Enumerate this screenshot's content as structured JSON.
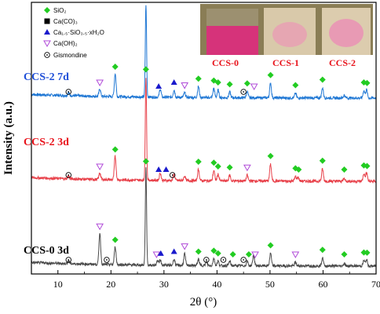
{
  "chart_data": {
    "type": "line",
    "xlabel": "2θ (°)",
    "ylabel": "Intensity (a.u.)",
    "xlim": [
      5,
      70
    ],
    "x_ticks": [
      "10",
      "20",
      "30",
      "40",
      "50",
      "60",
      "70"
    ],
    "x_tick_values": [
      10,
      20,
      30,
      40,
      50,
      60,
      70
    ],
    "legend": [
      {
        "label": "SiO₂",
        "marker": "diamond",
        "color": "#22cc22"
      },
      {
        "label": "Ca(CO)₃",
        "marker": "square",
        "color": "#000000"
      },
      {
        "label": "Ca₁.₅·SiO₃.₅·xH₂O",
        "marker": "triangle",
        "color": "#1a1acc"
      },
      {
        "label": "Ca(OH)₂",
        "marker": "triangle-down-open",
        "color": "#b04ad8"
      },
      {
        "label": "Gismondine",
        "marker": "circle-dot",
        "color": "#000000"
      }
    ],
    "series": [
      {
        "name": "CCS-2 7d",
        "color": "#1f77d4",
        "offset": 2.2,
        "label_color": "#1f4fd8",
        "peaks": [
          [
            12.0,
            0.03
          ],
          [
            17.9,
            0.08
          ],
          [
            20.8,
            0.25
          ],
          [
            26.6,
            1.0
          ],
          [
            29.3,
            0.09
          ],
          [
            31.9,
            0.08
          ],
          [
            33.9,
            0.05
          ],
          [
            36.5,
            0.12
          ],
          [
            39.4,
            0.1
          ],
          [
            40.2,
            0.08
          ],
          [
            42.4,
            0.06
          ],
          [
            45.7,
            0.07
          ],
          [
            50.1,
            0.16
          ],
          [
            54.8,
            0.05
          ],
          [
            59.9,
            0.11
          ],
          [
            64.0,
            0.03
          ],
          [
            67.7,
            0.08
          ],
          [
            68.2,
            0.09
          ]
        ]
      },
      {
        "name": "CCS-2 3d",
        "color": "#e8414a",
        "offset": 1.1,
        "label_color": "#e8141c",
        "peaks": [
          [
            12.0,
            0.03
          ],
          [
            17.9,
            0.07
          ],
          [
            20.8,
            0.25
          ],
          [
            26.6,
            1.1
          ],
          [
            29.3,
            0.08
          ],
          [
            31.9,
            0.07
          ],
          [
            33.9,
            0.05
          ],
          [
            36.5,
            0.12
          ],
          [
            39.4,
            0.11
          ],
          [
            40.2,
            0.07
          ],
          [
            42.4,
            0.06
          ],
          [
            45.7,
            0.06
          ],
          [
            50.1,
            0.18
          ],
          [
            54.8,
            0.05
          ],
          [
            55.3,
            0.04
          ],
          [
            59.9,
            0.13
          ],
          [
            64.0,
            0.03
          ],
          [
            67.7,
            0.08
          ],
          [
            68.2,
            0.09
          ]
        ]
      },
      {
        "name": "CCS-0 3d",
        "color": "#4a4a4a",
        "offset": 0.0,
        "label_color": "#000000",
        "peaks": [
          [
            12.0,
            0.03
          ],
          [
            17.9,
            0.35
          ],
          [
            20.8,
            0.2
          ],
          [
            26.6,
            1.07
          ],
          [
            28.8,
            0.05
          ],
          [
            29.3,
            0.06
          ],
          [
            31.9,
            0.07
          ],
          [
            33.9,
            0.13
          ],
          [
            36.5,
            0.07
          ],
          [
            38.0,
            0.04
          ],
          [
            39.4,
            0.08
          ],
          [
            40.2,
            0.05
          ],
          [
            42.4,
            0.05
          ],
          [
            45.7,
            0.05
          ],
          [
            46.9,
            0.12
          ],
          [
            50.1,
            0.14
          ],
          [
            54.8,
            0.04
          ],
          [
            59.9,
            0.09
          ],
          [
            64.0,
            0.03
          ],
          [
            67.7,
            0.06
          ],
          [
            68.2,
            0.07
          ]
        ]
      }
    ],
    "phase_markers": [
      {
        "series": 0,
        "x": 12.0,
        "type": "circle-dot"
      },
      {
        "series": 0,
        "x": 17.9,
        "type": "triangle-down-open"
      },
      {
        "series": 0,
        "x": 20.8,
        "type": "diamond"
      },
      {
        "series": 0,
        "x": 26.6,
        "type": "diamond"
      },
      {
        "series": 0,
        "x": 29.0,
        "type": "triangle"
      },
      {
        "series": 0,
        "x": 31.9,
        "type": "triangle"
      },
      {
        "series": 0,
        "x": 33.9,
        "type": "triangle-down-open"
      },
      {
        "series": 0,
        "x": 36.5,
        "type": "diamond"
      },
      {
        "series": 0,
        "x": 39.4,
        "type": "diamond"
      },
      {
        "series": 0,
        "x": 40.2,
        "type": "diamond"
      },
      {
        "series": 0,
        "x": 42.4,
        "type": "diamond"
      },
      {
        "series": 0,
        "x": 45.0,
        "type": "circle-dot"
      },
      {
        "series": 0,
        "x": 45.7,
        "type": "diamond"
      },
      {
        "series": 0,
        "x": 47.0,
        "type": "triangle-down-open"
      },
      {
        "series": 0,
        "x": 50.1,
        "type": "diamond"
      },
      {
        "series": 0,
        "x": 54.8,
        "type": "diamond"
      },
      {
        "series": 0,
        "x": 59.9,
        "type": "diamond"
      },
      {
        "series": 0,
        "x": 67.7,
        "type": "diamond"
      },
      {
        "series": 0,
        "x": 68.3,
        "type": "diamond"
      },
      {
        "series": 1,
        "x": 12.0,
        "type": "circle-dot"
      },
      {
        "series": 1,
        "x": 17.9,
        "type": "triangle-down-open"
      },
      {
        "series": 1,
        "x": 20.8,
        "type": "diamond"
      },
      {
        "series": 1,
        "x": 26.6,
        "type": "diamond"
      },
      {
        "series": 1,
        "x": 29.0,
        "type": "triangle"
      },
      {
        "series": 1,
        "x": 30.4,
        "type": "triangle"
      },
      {
        "series": 1,
        "x": 31.6,
        "type": "circle-dot"
      },
      {
        "series": 1,
        "x": 36.5,
        "type": "diamond"
      },
      {
        "series": 1,
        "x": 39.4,
        "type": "diamond"
      },
      {
        "series": 1,
        "x": 40.2,
        "type": "diamond"
      },
      {
        "series": 1,
        "x": 42.4,
        "type": "diamond"
      },
      {
        "series": 1,
        "x": 45.7,
        "type": "triangle-down-open"
      },
      {
        "series": 1,
        "x": 50.1,
        "type": "diamond"
      },
      {
        "series": 1,
        "x": 54.8,
        "type": "diamond"
      },
      {
        "series": 1,
        "x": 55.4,
        "type": "diamond"
      },
      {
        "series": 1,
        "x": 59.9,
        "type": "diamond"
      },
      {
        "series": 1,
        "x": 64.0,
        "type": "diamond"
      },
      {
        "series": 1,
        "x": 67.7,
        "type": "diamond"
      },
      {
        "series": 1,
        "x": 68.3,
        "type": "diamond"
      },
      {
        "series": 2,
        "x": 12.0,
        "type": "circle-dot"
      },
      {
        "series": 2,
        "x": 17.9,
        "type": "triangle-down-open"
      },
      {
        "series": 2,
        "x": 19.2,
        "type": "circle-dot"
      },
      {
        "series": 2,
        "x": 20.8,
        "type": "diamond"
      },
      {
        "series": 2,
        "x": 26.6,
        "type": "diamond"
      },
      {
        "series": 2,
        "x": 28.6,
        "type": "triangle-down-open"
      },
      {
        "series": 2,
        "x": 29.4,
        "type": "triangle"
      },
      {
        "series": 2,
        "x": 31.9,
        "type": "triangle"
      },
      {
        "series": 2,
        "x": 33.9,
        "type": "triangle-down-open"
      },
      {
        "series": 2,
        "x": 36.5,
        "type": "diamond"
      },
      {
        "series": 2,
        "x": 38.0,
        "type": "circle-dot"
      },
      {
        "series": 2,
        "x": 39.4,
        "type": "diamond"
      },
      {
        "series": 2,
        "x": 40.2,
        "type": "diamond"
      },
      {
        "series": 2,
        "x": 41.2,
        "type": "circle-dot"
      },
      {
        "series": 2,
        "x": 43.0,
        "type": "diamond"
      },
      {
        "series": 2,
        "x": 45.0,
        "type": "circle-dot"
      },
      {
        "series": 2,
        "x": 46.0,
        "type": "diamond"
      },
      {
        "series": 2,
        "x": 47.2,
        "type": "triangle-down-open"
      },
      {
        "series": 2,
        "x": 50.1,
        "type": "diamond"
      },
      {
        "series": 2,
        "x": 54.8,
        "type": "triangle-down-open"
      },
      {
        "series": 2,
        "x": 59.9,
        "type": "diamond"
      },
      {
        "series": 2,
        "x": 64.0,
        "type": "diamond"
      },
      {
        "series": 2,
        "x": 67.7,
        "type": "diamond"
      },
      {
        "series": 2,
        "x": 68.3,
        "type": "diamond"
      }
    ],
    "inset": {
      "labels": [
        "CCS-0",
        "CCS-1",
        "CCS-2"
      ],
      "label_color": "#e8141c"
    },
    "grid": false
  }
}
